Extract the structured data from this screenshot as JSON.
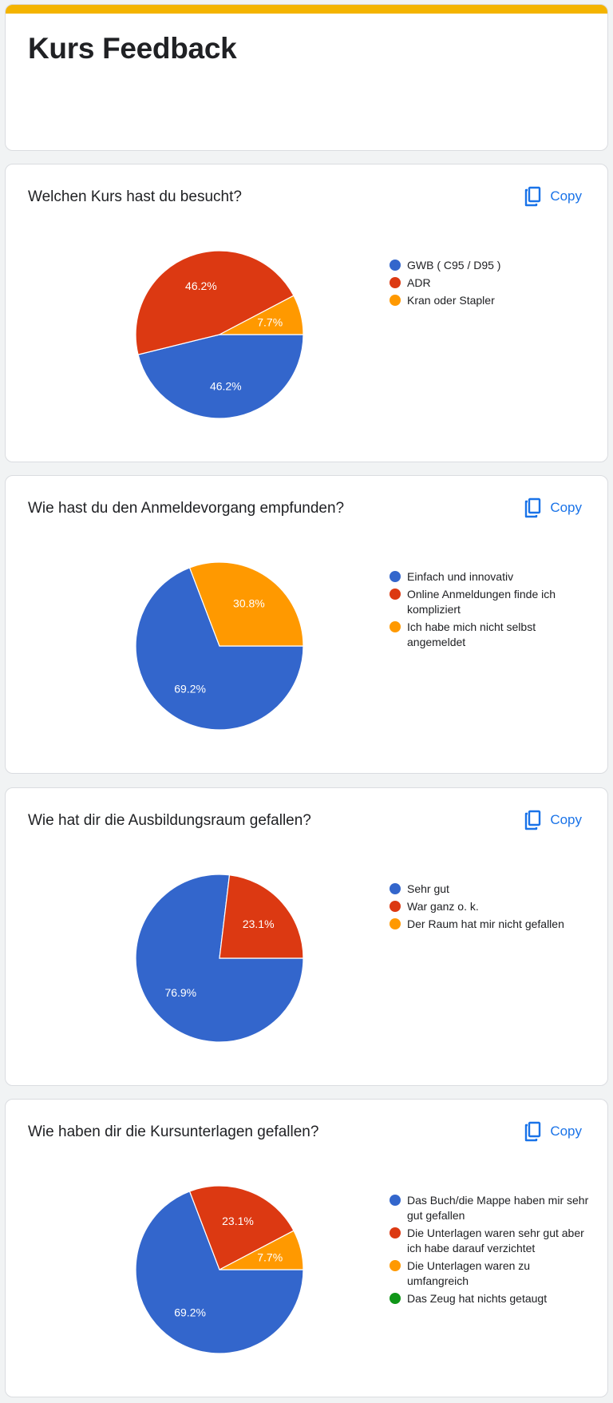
{
  "form": {
    "title": "Kurs Feedback",
    "accent_color": "#f4b400"
  },
  "copy_label": "Copy",
  "colors": {
    "blue": "#3366cc",
    "red": "#dc3912",
    "orange": "#ff9900",
    "green": "#109618"
  },
  "questions": [
    {
      "title": "Welchen Kurs hast du besucht?",
      "chart_data": {
        "type": "pie",
        "labels": [
          "GWB ( C95 / D95 )",
          "ADR",
          "Kran oder Stapler"
        ],
        "values": [
          46.2,
          46.2,
          7.7
        ],
        "slice_labels": [
          "46.2%",
          "46.2%",
          "7.7%"
        ],
        "colors": [
          "#3366cc",
          "#dc3912",
          "#ff9900"
        ],
        "legend_position": "right"
      }
    },
    {
      "title": "Wie hast du den Anmeldevorgang empfunden?",
      "chart_data": {
        "type": "pie",
        "labels": [
          "Einfach und innovativ",
          "Online Anmeldungen finde ich kompliziert",
          "Ich habe mich nicht selbst angemeldet"
        ],
        "values": [
          69.2,
          0,
          30.8
        ],
        "slice_labels": [
          "69.2%",
          "",
          "30.8%"
        ],
        "colors": [
          "#3366cc",
          "#dc3912",
          "#ff9900"
        ],
        "legend_position": "right"
      }
    },
    {
      "title": "Wie hat dir die Ausbildungsraum gefallen?",
      "chart_data": {
        "type": "pie",
        "labels": [
          "Sehr gut",
          "War ganz o. k.",
          "Der Raum hat mir nicht gefallen"
        ],
        "values": [
          76.9,
          23.1,
          0
        ],
        "slice_labels": [
          "76.9%",
          "23.1%",
          ""
        ],
        "colors": [
          "#3366cc",
          "#dc3912",
          "#ff9900"
        ],
        "legend_position": "right"
      }
    },
    {
      "title": "Wie haben dir die Kursunterlagen gefallen?",
      "chart_data": {
        "type": "pie",
        "labels": [
          "Das Buch/die Mappe haben mir sehr gut gefallen",
          "Die Unterlagen waren sehr gut aber ich habe darauf verzichtet",
          "Die Unterlagen waren zu umfangreich",
          "Das Zeug hat nichts getaugt"
        ],
        "values": [
          69.2,
          23.1,
          7.7,
          0
        ],
        "slice_labels": [
          "69.2%",
          "23.1%",
          "7.7%",
          ""
        ],
        "colors": [
          "#3366cc",
          "#dc3912",
          "#ff9900",
          "#109618"
        ],
        "legend_position": "right"
      }
    }
  ]
}
